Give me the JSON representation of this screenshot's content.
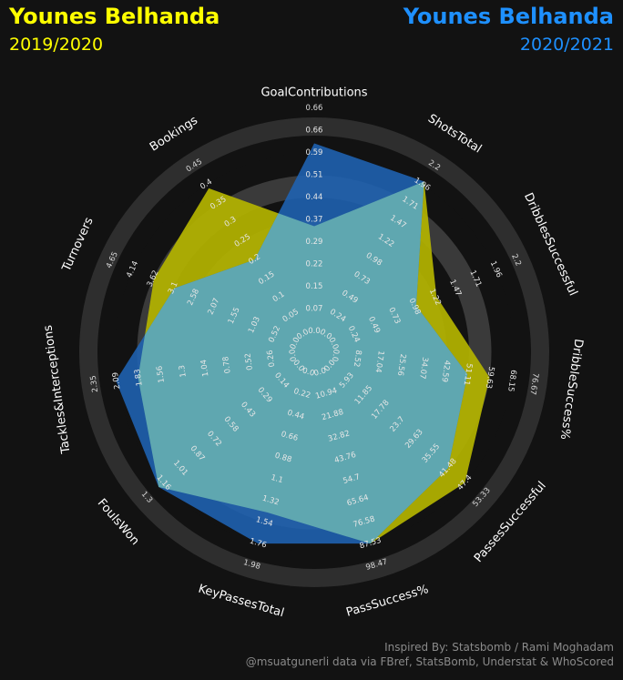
{
  "header": {
    "left": {
      "name": "Younes Belhanda",
      "season": "2019/2020",
      "color": "#ffff00"
    },
    "right": {
      "name": "Younes Belhanda",
      "season": "2020/2021",
      "color": "#1e90ff"
    }
  },
  "footer": {
    "line1": "Inspired By: Statsbomb / Rami Moghadam",
    "line2": "@msuatgunerli data via FBref, StatsBomb, Understat & WhoScored"
  },
  "colors": {
    "background": "#121212",
    "outer_ring": "#2e2e2e",
    "inner_ring": "#3a3a3a",
    "series_2019": "#b4b400",
    "series_2020": "#1f63b4",
    "overlap": "#5fa7b0"
  },
  "chart_data": {
    "type": "radar",
    "axes": [
      {
        "label": "GoalContributions",
        "ticks": [
          "0.0",
          "0.07",
          "0.15",
          "0.22",
          "0.29",
          "0.37",
          "0.44",
          "0.51",
          "0.59",
          "0.66"
        ],
        "outer_tick": "0.66"
      },
      {
        "label": "ShotsTotal",
        "ticks": [
          "0.0",
          "0.24",
          "0.49",
          "0.73",
          "0.98",
          "1.22",
          "1.47",
          "1.71",
          "1.96"
        ],
        "outer_tick": "2.2"
      },
      {
        "label": "DribblesSuccessful",
        "ticks": [
          "0.0",
          "0.24",
          "0.49",
          "0.73",
          "0.98",
          "1.22",
          "1.47",
          "1.71",
          "1.96"
        ],
        "outer_tick": "2.2"
      },
      {
        "label": "DribbleSuccess%",
        "ticks": [
          "0.0",
          "8.52",
          "17.04",
          "25.56",
          "34.07",
          "42.59",
          "51.11",
          "59.63",
          "68.15"
        ],
        "outer_tick": "76.67"
      },
      {
        "label": "PassesSuccessful",
        "ticks": [
          "0.0",
          "5.93",
          "11.85",
          "17.78",
          "23.7",
          "29.63",
          "35.55",
          "41.48",
          "47.4"
        ],
        "outer_tick": "53.33"
      },
      {
        "label": "PassSuccess%",
        "ticks": [
          "0.0",
          "10.94",
          "21.88",
          "32.82",
          "43.76",
          "54.7",
          "65.64",
          "76.58",
          "87.53"
        ],
        "outer_tick": "98.47"
      },
      {
        "label": "KeyPassesTotal",
        "ticks": [
          "0.0",
          "0.22",
          "0.44",
          "0.66",
          "0.88",
          "1.1",
          "1.32",
          "1.54",
          "1.76"
        ],
        "outer_tick": "1.98"
      },
      {
        "label": "FoulsWon",
        "ticks": [
          "0.0",
          "0.14",
          "0.29",
          "0.43",
          "0.58",
          "0.72",
          "0.87",
          "1.01",
          "1.16"
        ],
        "outer_tick": "1.3"
      },
      {
        "label": "Tackles&Interceptions",
        "ticks": [
          "0.0",
          "0.26",
          "0.52",
          "0.78",
          "1.04",
          "1.3",
          "1.56",
          "1.83",
          "2.09"
        ],
        "outer_tick": "2.35"
      },
      {
        "label": "Turnovers",
        "ticks": [
          "0.0",
          "0.52",
          "1.03",
          "1.55",
          "2.07",
          "2.58",
          "3.1",
          "3.62",
          "4.14"
        ],
        "outer_tick": "4.65"
      },
      {
        "label": "Bookings",
        "ticks": [
          "0.0",
          "0.05",
          "0.1",
          "0.15",
          "0.2",
          "0.25",
          "0.3",
          "0.35",
          "0.4"
        ],
        "outer_tick": "0.45"
      }
    ],
    "series": [
      {
        "name": "2019/2020",
        "values": [
          0.33,
          1.96,
          1.22,
          59.63,
          47.4,
          87.53,
          1.44,
          1.16,
          1.83,
          3.62,
          0.39
        ]
      },
      {
        "name": "2020/2021",
        "values": [
          0.59,
          1.96,
          0.98,
          51.11,
          41.48,
          87.53,
          1.76,
          1.16,
          2.09,
          3.1,
          0.2
        ]
      }
    ]
  }
}
